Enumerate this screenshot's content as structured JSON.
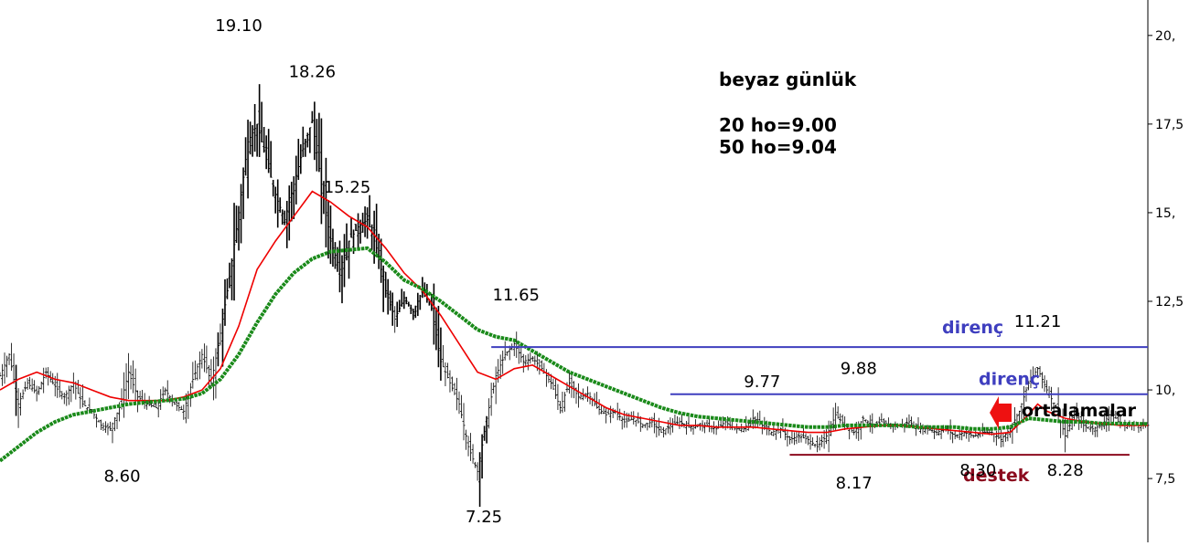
{
  "chart_data": {
    "type": "candlestick",
    "y_axis": {
      "position": "right",
      "ylim": [
        5.7,
        21.0
      ],
      "ticks": [
        7.5,
        10,
        12.5,
        15,
        17.5,
        20
      ],
      "tick_labels": [
        "7,5",
        "10,",
        "12,5",
        "15,",
        "17,5",
        "20,"
      ]
    },
    "x_range": [
      0,
      250
    ],
    "grid": false,
    "notes": {
      "title": "beyaz günlük",
      "ma20": "20 ho=9.00",
      "ma50": "50 ho=9.04",
      "averages_label": "ortalamalar"
    },
    "price_labels": [
      {
        "text": "19.10",
        "x": 52,
        "y": 19.1
      },
      {
        "text": "18.26",
        "x": 68,
        "y": 18.26
      },
      {
        "text": "15.25",
        "x": 75,
        "y": 15.25
      },
      {
        "text": "11.65",
        "x": 112,
        "y": 11.65
      },
      {
        "text": "11.21",
        "x": 226,
        "y": 11.21
      },
      {
        "text": "9.77",
        "x": 166,
        "y": 9.77
      },
      {
        "text": "9.88",
        "x": 187,
        "y": 9.88
      },
      {
        "text": "8.60",
        "x": 25,
        "y": 8.6
      },
      {
        "text": "7.25",
        "x": 105,
        "y": 7.25
      },
      {
        "text": "8.17",
        "x": 186,
        "y": 8.17
      },
      {
        "text": "8.30",
        "x": 213,
        "y": 8.3
      },
      {
        "text": "8.28",
        "x": 232,
        "y": 8.28
      }
    ],
    "levels": [
      {
        "name": "direnç",
        "kind": "resistance",
        "value": 11.21,
        "x_start": 107,
        "x_end": 250
      },
      {
        "name": "direnç",
        "kind": "resistance",
        "value": 9.88,
        "x_start": 146,
        "x_end": 250
      },
      {
        "name": "destek",
        "kind": "support",
        "value": 8.17,
        "x_start": 172,
        "x_end": 246
      }
    ],
    "close_path": [
      [
        0,
        10.4
      ],
      [
        2,
        11.0
      ],
      [
        4,
        9.6
      ],
      [
        6,
        10.2
      ],
      [
        8,
        9.9
      ],
      [
        10,
        10.5
      ],
      [
        12,
        10.1
      ],
      [
        14,
        9.8
      ],
      [
        16,
        10.2
      ],
      [
        18,
        9.6
      ],
      [
        20,
        9.4
      ],
      [
        22,
        9.0
      ],
      [
        24,
        8.9
      ],
      [
        26,
        9.5
      ],
      [
        28,
        10.5
      ],
      [
        30,
        9.8
      ],
      [
        32,
        9.6
      ],
      [
        34,
        9.5
      ],
      [
        36,
        10.0
      ],
      [
        38,
        9.6
      ],
      [
        40,
        9.4
      ],
      [
        42,
        10.3
      ],
      [
        44,
        11.0
      ],
      [
        46,
        10.2
      ],
      [
        48,
        11.6
      ],
      [
        50,
        13.2
      ],
      [
        52,
        15.0
      ],
      [
        54,
        17.0
      ],
      [
        56,
        17.5
      ],
      [
        58,
        16.5
      ],
      [
        60,
        15.5
      ],
      [
        62,
        14.8
      ],
      [
        64,
        15.8
      ],
      [
        66,
        16.8
      ],
      [
        68,
        17.6
      ],
      [
        70,
        15.8
      ],
      [
        72,
        14.2
      ],
      [
        74,
        13.4
      ],
      [
        76,
        14.2
      ],
      [
        78,
        14.6
      ],
      [
        80,
        14.8
      ],
      [
        82,
        14.0
      ],
      [
        84,
        12.8
      ],
      [
        86,
        12.0
      ],
      [
        88,
        12.6
      ],
      [
        90,
        12.2
      ],
      [
        92,
        12.8
      ],
      [
        94,
        12.3
      ],
      [
        96,
        10.8
      ],
      [
        98,
        10.2
      ],
      [
        100,
        9.6
      ],
      [
        102,
        8.4
      ],
      [
        104,
        7.7
      ],
      [
        106,
        9.2
      ],
      [
        108,
        10.4
      ],
      [
        110,
        11.0
      ],
      [
        112,
        11.3
      ],
      [
        114,
        10.8
      ],
      [
        116,
        10.9
      ],
      [
        118,
        10.6
      ],
      [
        120,
        10.2
      ],
      [
        122,
        9.5
      ],
      [
        124,
        10.2
      ],
      [
        126,
        9.8
      ],
      [
        128,
        9.9
      ],
      [
        130,
        9.5
      ],
      [
        132,
        9.3
      ],
      [
        134,
        9.4
      ],
      [
        136,
        9.1
      ],
      [
        138,
        9.2
      ],
      [
        140,
        9.0
      ],
      [
        142,
        9.1
      ],
      [
        144,
        8.8
      ],
      [
        146,
        9.0
      ],
      [
        148,
        9.1
      ],
      [
        150,
        8.95
      ],
      [
        152,
        9.0
      ],
      [
        154,
        9.0
      ],
      [
        156,
        8.9
      ],
      [
        158,
        9.1
      ],
      [
        160,
        8.9
      ],
      [
        162,
        8.9
      ],
      [
        164,
        9.2
      ],
      [
        166,
        9.0
      ],
      [
        168,
        8.8
      ],
      [
        170,
        8.9
      ],
      [
        172,
        8.6
      ],
      [
        174,
        8.7
      ],
      [
        176,
        8.6
      ],
      [
        178,
        8.4
      ],
      [
        180,
        8.7
      ],
      [
        182,
        9.3
      ],
      [
        184,
        9.0
      ],
      [
        186,
        8.8
      ],
      [
        188,
        9.2
      ],
      [
        190,
        9.0
      ],
      [
        192,
        9.1
      ],
      [
        194,
        9.0
      ],
      [
        196,
        9.0
      ],
      [
        198,
        9.1
      ],
      [
        200,
        8.9
      ],
      [
        202,
        8.9
      ],
      [
        204,
        8.8
      ],
      [
        206,
        8.9
      ],
      [
        208,
        8.7
      ],
      [
        210,
        8.8
      ],
      [
        212,
        8.7
      ],
      [
        214,
        8.8
      ],
      [
        216,
        8.8
      ],
      [
        218,
        8.6
      ],
      [
        220,
        8.9
      ],
      [
        222,
        9.4
      ],
      [
        224,
        10.2
      ],
      [
        226,
        10.6
      ],
      [
        228,
        10.0
      ],
      [
        230,
        9.5
      ],
      [
        232,
        8.7
      ],
      [
        234,
        9.3
      ],
      [
        236,
        9.0
      ],
      [
        238,
        8.9
      ],
      [
        240,
        9.0
      ],
      [
        242,
        9.4
      ],
      [
        244,
        9.0
      ],
      [
        246,
        9.0
      ],
      [
        248,
        9.0
      ],
      [
        250,
        9.0
      ]
    ],
    "series": [
      {
        "name": "20 ho",
        "color": "#ee0000",
        "style": "solid",
        "values": [
          [
            0,
            10.0
          ],
          [
            4,
            10.3
          ],
          [
            8,
            10.5
          ],
          [
            12,
            10.3
          ],
          [
            16,
            10.2
          ],
          [
            20,
            10.0
          ],
          [
            24,
            9.8
          ],
          [
            28,
            9.7
          ],
          [
            32,
            9.7
          ],
          [
            36,
            9.7
          ],
          [
            40,
            9.8
          ],
          [
            44,
            10.0
          ],
          [
            48,
            10.6
          ],
          [
            52,
            11.8
          ],
          [
            56,
            13.4
          ],
          [
            60,
            14.2
          ],
          [
            64,
            14.9
          ],
          [
            68,
            15.6
          ],
          [
            72,
            15.3
          ],
          [
            76,
            14.9
          ],
          [
            80,
            14.6
          ],
          [
            84,
            14.0
          ],
          [
            88,
            13.3
          ],
          [
            92,
            12.8
          ],
          [
            96,
            12.1
          ],
          [
            100,
            11.3
          ],
          [
            104,
            10.5
          ],
          [
            108,
            10.3
          ],
          [
            112,
            10.6
          ],
          [
            116,
            10.7
          ],
          [
            120,
            10.4
          ],
          [
            124,
            10.1
          ],
          [
            128,
            9.8
          ],
          [
            132,
            9.5
          ],
          [
            136,
            9.3
          ],
          [
            140,
            9.2
          ],
          [
            144,
            9.1
          ],
          [
            148,
            9.0
          ],
          [
            152,
            9.0
          ],
          [
            156,
            8.95
          ],
          [
            160,
            8.95
          ],
          [
            164,
            8.95
          ],
          [
            168,
            8.9
          ],
          [
            172,
            8.85
          ],
          [
            176,
            8.8
          ],
          [
            180,
            8.8
          ],
          [
            184,
            8.9
          ],
          [
            188,
            8.95
          ],
          [
            192,
            9.0
          ],
          [
            196,
            9.0
          ],
          [
            200,
            8.95
          ],
          [
            204,
            8.9
          ],
          [
            208,
            8.85
          ],
          [
            212,
            8.8
          ],
          [
            216,
            8.75
          ],
          [
            220,
            8.8
          ],
          [
            224,
            9.3
          ],
          [
            226,
            9.6
          ],
          [
            228,
            9.4
          ],
          [
            232,
            9.2
          ],
          [
            236,
            9.1
          ],
          [
            240,
            9.05
          ],
          [
            244,
            9.0
          ],
          [
            250,
            9.0
          ]
        ]
      },
      {
        "name": "50 ho",
        "color": "#1a8a1a",
        "style": "dotted",
        "values": [
          [
            0,
            8.0
          ],
          [
            4,
            8.4
          ],
          [
            8,
            8.8
          ],
          [
            12,
            9.1
          ],
          [
            16,
            9.3
          ],
          [
            20,
            9.4
          ],
          [
            24,
            9.5
          ],
          [
            28,
            9.6
          ],
          [
            32,
            9.65
          ],
          [
            36,
            9.7
          ],
          [
            40,
            9.75
          ],
          [
            44,
            9.9
          ],
          [
            48,
            10.3
          ],
          [
            52,
            11.0
          ],
          [
            56,
            11.9
          ],
          [
            60,
            12.7
          ],
          [
            64,
            13.3
          ],
          [
            68,
            13.7
          ],
          [
            72,
            13.9
          ],
          [
            76,
            13.95
          ],
          [
            80,
            14.0
          ],
          [
            84,
            13.6
          ],
          [
            88,
            13.1
          ],
          [
            92,
            12.85
          ],
          [
            96,
            12.5
          ],
          [
            100,
            12.1
          ],
          [
            104,
            11.7
          ],
          [
            108,
            11.5
          ],
          [
            112,
            11.4
          ],
          [
            116,
            11.1
          ],
          [
            120,
            10.8
          ],
          [
            124,
            10.5
          ],
          [
            128,
            10.3
          ],
          [
            132,
            10.1
          ],
          [
            136,
            9.9
          ],
          [
            140,
            9.7
          ],
          [
            144,
            9.5
          ],
          [
            148,
            9.35
          ],
          [
            152,
            9.25
          ],
          [
            156,
            9.2
          ],
          [
            160,
            9.15
          ],
          [
            164,
            9.1
          ],
          [
            168,
            9.05
          ],
          [
            172,
            9.0
          ],
          [
            176,
            8.95
          ],
          [
            180,
            8.95
          ],
          [
            184,
            9.0
          ],
          [
            188,
            9.0
          ],
          [
            192,
            9.0
          ],
          [
            196,
            9.0
          ],
          [
            200,
            8.95
          ],
          [
            204,
            8.95
          ],
          [
            208,
            8.95
          ],
          [
            212,
            8.9
          ],
          [
            216,
            8.9
          ],
          [
            220,
            8.95
          ],
          [
            224,
            9.2
          ],
          [
            228,
            9.15
          ],
          [
            232,
            9.1
          ],
          [
            236,
            9.1
          ],
          [
            240,
            9.05
          ],
          [
            244,
            9.05
          ],
          [
            250,
            9.04
          ]
        ]
      }
    ],
    "colors": {
      "background": "#ffffff",
      "price": "#000000",
      "resistance": "#3f3fbf",
      "support": "#8b0a1e",
      "arrow": "#ee1111",
      "axis": "#000000"
    }
  }
}
